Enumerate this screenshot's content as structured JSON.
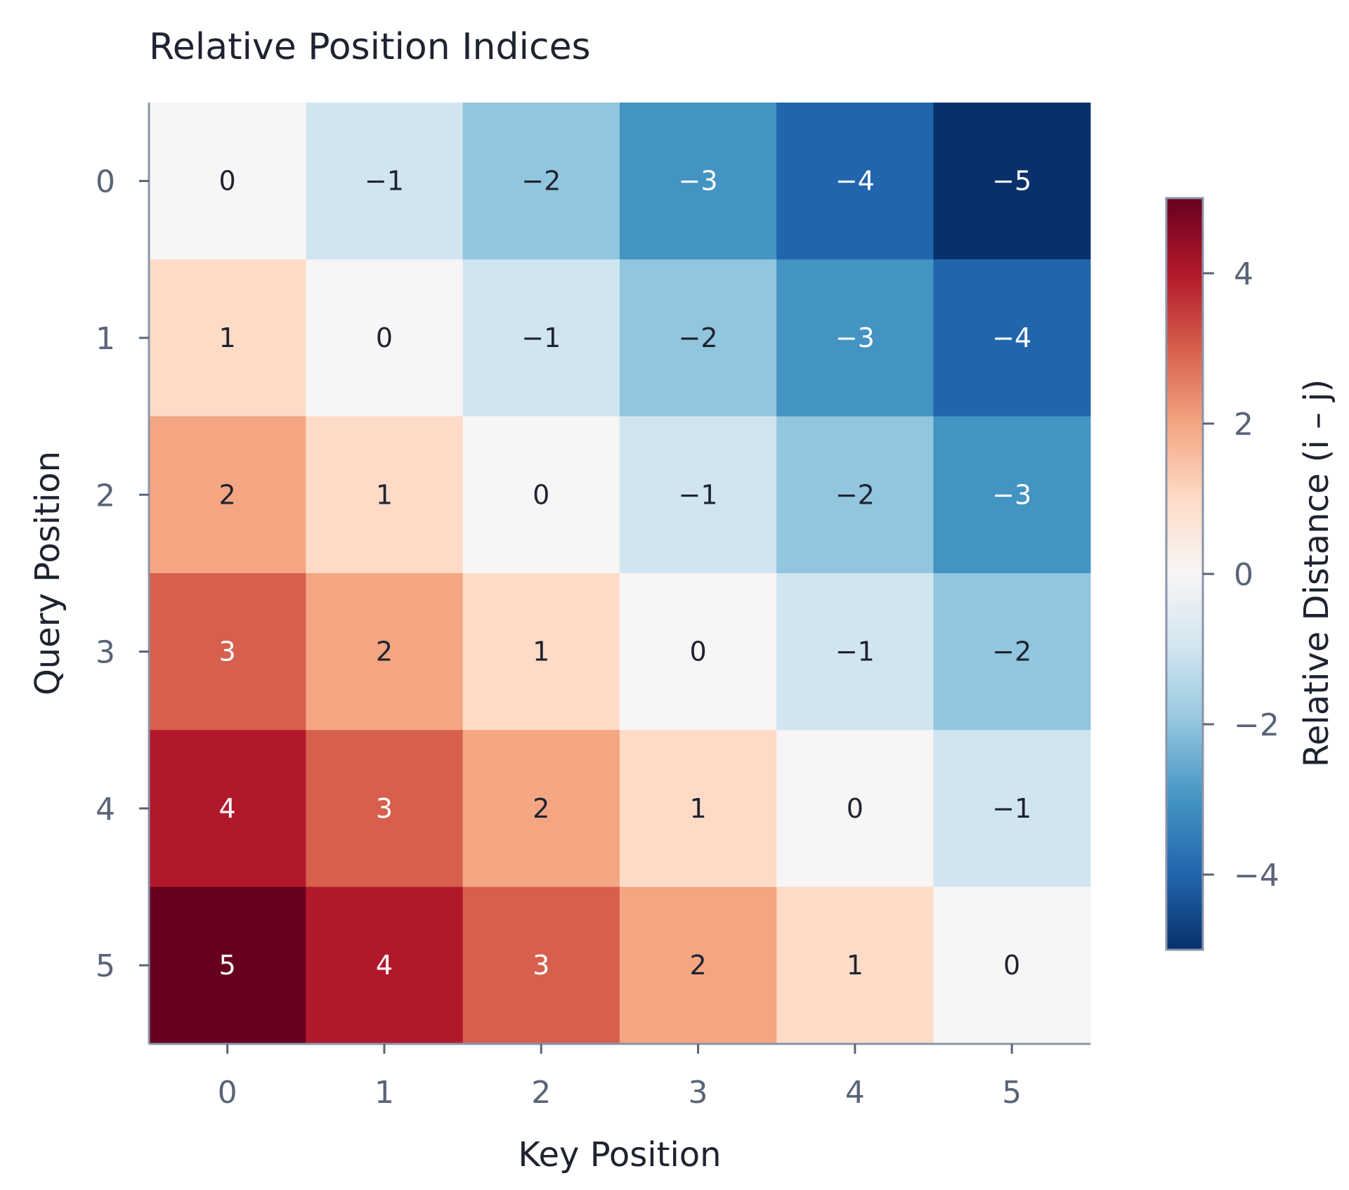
{
  "chart_data": {
    "type": "heatmap",
    "title": "Relative Position Indices",
    "xlabel": "Key Position",
    "ylabel": "Query Position",
    "x_categories": [
      "0",
      "1",
      "2",
      "3",
      "4",
      "5"
    ],
    "y_categories": [
      "0",
      "1",
      "2",
      "3",
      "4",
      "5"
    ],
    "values": [
      [
        0,
        -1,
        -2,
        -3,
        -4,
        -5
      ],
      [
        1,
        0,
        -1,
        -2,
        -3,
        -4
      ],
      [
        2,
        1,
        0,
        -1,
        -2,
        -3
      ],
      [
        3,
        2,
        1,
        0,
        -1,
        -2
      ],
      [
        4,
        3,
        2,
        1,
        0,
        -1
      ],
      [
        5,
        4,
        3,
        2,
        1,
        0
      ]
    ],
    "colorbar": {
      "label": "Relative Distance (i – j)",
      "range": [
        -5,
        5
      ],
      "ticks": [
        4,
        2,
        0,
        -2,
        -4
      ],
      "tick_labels": [
        "4",
        "2",
        "0",
        "−2",
        "−4"
      ],
      "colormap": "RdBu"
    },
    "colors": {
      "-5": "#08306b",
      "-4": "#2166ac",
      "-3": "#4393c3",
      "-2": "#92c5de",
      "-1": "#d1e5f0",
      "0": "#f7f5f5",
      "1": "#fddbc7",
      "2": "#f4a582",
      "3": "#d6604d",
      "4": "#b2182b",
      "5": "#67001f"
    },
    "grid": false,
    "annotated": true
  }
}
